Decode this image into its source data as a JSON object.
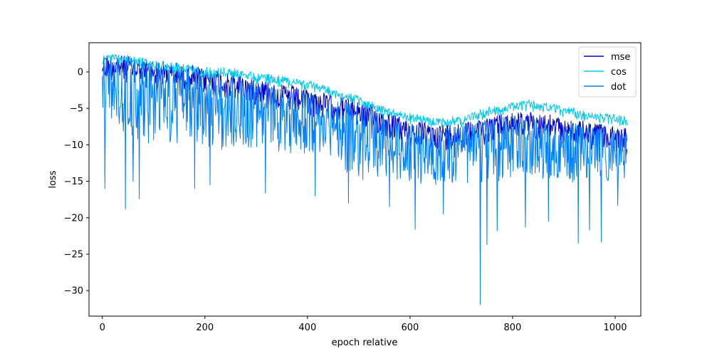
{
  "chart_data": {
    "type": "line",
    "title": "",
    "xlabel": "epoch relative",
    "ylabel": "loss",
    "xlim": [
      -26,
      1050
    ],
    "ylim": [
      -33.5,
      4.0
    ],
    "xticks": [
      0,
      200,
      400,
      600,
      800,
      1000
    ],
    "yticks": [
      0,
      -5,
      -10,
      -15,
      -20,
      -25,
      -30
    ],
    "legend_position": "top-right",
    "grid": false,
    "n_points": 1024,
    "series": [
      {
        "name": "mse",
        "color": "#0000cd",
        "upper_envelope": {
          "x": [
            0,
            25,
            100,
            200,
            300,
            400,
            500,
            600,
            650,
            700,
            750,
            800,
            850,
            900,
            950,
            1000,
            1023
          ],
          "y": [
            2.2,
            2.3,
            1.5,
            0.5,
            -1.0,
            -2.5,
            -4.0,
            -6.8,
            -7.3,
            -7.0,
            -6.2,
            -5.6,
            -5.7,
            -6.5,
            -7.0,
            -7.6,
            -7.8
          ]
        },
        "depth": 3.5
      },
      {
        "name": "cos",
        "color": "#00c8f0",
        "upper_envelope": {
          "x": [
            0,
            25,
            100,
            200,
            250,
            300,
            400,
            500,
            560,
            600,
            650,
            700,
            750,
            800,
            830,
            850,
            900,
            950,
            1000,
            1023
          ],
          "y": [
            2.2,
            2.4,
            1.5,
            0.5,
            0.4,
            -0.2,
            -1.2,
            -3.5,
            -5.2,
            -5.8,
            -6.4,
            -6.2,
            -5.0,
            -4.3,
            -4.0,
            -4.2,
            -4.8,
            -5.5,
            -6.0,
            -6.2
          ]
        },
        "depth": 1.2
      },
      {
        "name": "dot",
        "color": "#0080ff",
        "upper_envelope": {
          "x": [
            0,
            25,
            100,
            200,
            300,
            400,
            500,
            600,
            650,
            700,
            750,
            800,
            850,
            900,
            950,
            1000,
            1023
          ],
          "y": [
            2.0,
            2.1,
            1.0,
            0.0,
            -1.5,
            -3.0,
            -4.8,
            -7.2,
            -7.6,
            -7.4,
            -6.5,
            -6.0,
            -6.2,
            -7.0,
            -7.5,
            -8.0,
            -8.2
          ]
        },
        "lower_envelope": {
          "x": [
            0,
            50,
            100,
            200,
            300,
            400,
            460,
            470,
            500,
            600,
            700,
            800,
            900,
            1000,
            1023
          ],
          "y": [
            -5.5,
            -9.0,
            -10.0,
            -10.5,
            -11.0,
            -11.5,
            -11.5,
            -15.0,
            -15.0,
            -15.3,
            -15.2,
            -15.0,
            -15.0,
            -15.0,
            -14.8
          ]
        },
        "spikes": [
          {
            "x": 5,
            "y": -16.0
          },
          {
            "x": 45,
            "y": -18.8
          },
          {
            "x": 72,
            "y": -17.4
          },
          {
            "x": 60,
            "y": -15.0
          },
          {
            "x": 180,
            "y": -16.0
          },
          {
            "x": 210,
            "y": -15.5
          },
          {
            "x": 318,
            "y": -16.6
          },
          {
            "x": 415,
            "y": -17.0
          },
          {
            "x": 480,
            "y": -18.0
          },
          {
            "x": 560,
            "y": -18.5
          },
          {
            "x": 610,
            "y": -21.6
          },
          {
            "x": 665,
            "y": -19.5
          },
          {
            "x": 737,
            "y": -31.9
          },
          {
            "x": 750,
            "y": -23.7
          },
          {
            "x": 770,
            "y": -21.8
          },
          {
            "x": 825,
            "y": -21.3
          },
          {
            "x": 870,
            "y": -20.5
          },
          {
            "x": 928,
            "y": -23.5
          },
          {
            "x": 950,
            "y": -21.7
          },
          {
            "x": 973,
            "y": -23.3
          },
          {
            "x": 1005,
            "y": -18.3
          }
        ]
      }
    ]
  }
}
